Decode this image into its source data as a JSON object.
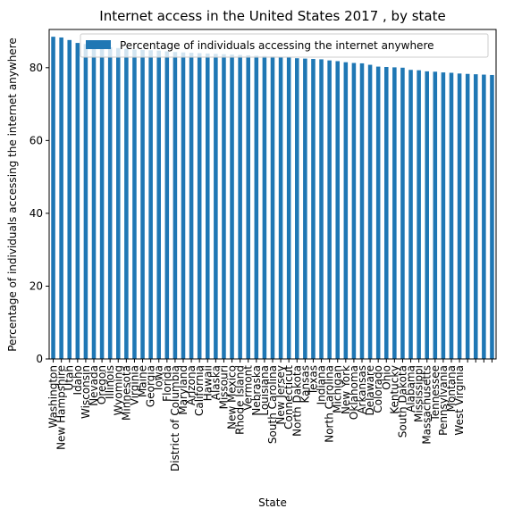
{
  "chart_data": {
    "type": "bar",
    "title": "Internet access in the United States 2017 , by state",
    "xlabel": "State",
    "ylabel": "Percentage of individuals accessing the internet anywhere",
    "ylim": [
      0,
      90.5
    ],
    "yticks": [
      0,
      20,
      40,
      60,
      80
    ],
    "legend_position": "top-right",
    "grid": false,
    "bar_color": "#1f77b4",
    "series": [
      {
        "name": "Percentage of individuals accessing the internet anywhere",
        "values": [
          88.5,
          88.3,
          87.6,
          86.8,
          86.5,
          86.2,
          86.0,
          85.6,
          85.4,
          85.2,
          85.0,
          84.9,
          84.8,
          84.7,
          84.5,
          84.3,
          84.2,
          84.1,
          84.0,
          83.9,
          83.8,
          83.7,
          83.6,
          83.5,
          83.4,
          83.3,
          83.2,
          83.1,
          83.0,
          82.9,
          82.6,
          82.5,
          82.4,
          82.3,
          82.0,
          81.8,
          81.5,
          81.3,
          81.2,
          80.8,
          80.3,
          80.2,
          80.1,
          80.0,
          79.4,
          79.3,
          79.0,
          78.9,
          78.7,
          78.6,
          78.4,
          78.3,
          78.2,
          78.1,
          78.0
        ]
      }
    ],
    "categories": [
      "Washington",
      "New Hampshire",
      "Utah",
      "Idaho",
      "Wisconsin",
      "Nevada",
      "Oregon",
      "Illinois",
      "Wyoming",
      "Minnesota",
      "Virginia",
      "Maine",
      "Georgia",
      "Iowa",
      "Florida",
      "District of Columbia",
      "Maryland",
      "Arizona",
      "California",
      "Hawaii",
      "Alaska",
      "Missouri",
      "New Mexico",
      "Rhode Island",
      "Vermont",
      "Nebraska",
      "Louisiana",
      "South Carolina",
      "New Jersey",
      "Connecticut",
      "North Dakota",
      "Kansas",
      "Texas",
      "Indiana",
      "North Carolina",
      "Michigan",
      "New York",
      "Oklahoma",
      "Arkansas",
      "Delaware",
      "Colorado",
      "Ohio",
      "Kentucky",
      "South Dakota",
      "Alabama",
      "Mississippi",
      "Massachusetts",
      "Tennessee",
      "Pennsylvania",
      "Montana",
      "West Virginia",
      "",
      "",
      "",
      ""
    ]
  }
}
